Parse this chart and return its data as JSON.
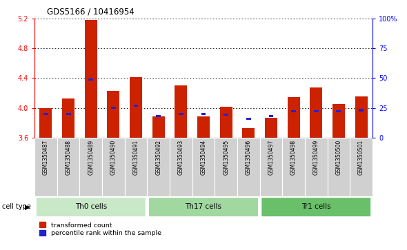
{
  "title": "GDS5166 / 10416954",
  "samples": [
    "GSM1350487",
    "GSM1350488",
    "GSM1350489",
    "GSM1350490",
    "GSM1350491",
    "GSM1350492",
    "GSM1350493",
    "GSM1350494",
    "GSM1350495",
    "GSM1350496",
    "GSM1350497",
    "GSM1350498",
    "GSM1350499",
    "GSM1350500",
    "GSM1350501"
  ],
  "transformed_count": [
    4.0,
    4.13,
    5.18,
    4.23,
    4.41,
    3.88,
    4.3,
    3.88,
    4.01,
    3.73,
    3.87,
    4.14,
    4.27,
    4.05,
    4.15
  ],
  "percentile_rank": [
    20,
    20,
    49,
    25,
    27,
    18,
    20,
    20,
    19,
    16,
    18,
    22,
    22,
    22,
    23
  ],
  "cell_types": [
    {
      "label": "Th0 cells",
      "start": 0,
      "end": 5,
      "color": "#c8e8c8"
    },
    {
      "label": "Th17 cells",
      "start": 5,
      "end": 10,
      "color": "#a0d8a0"
    },
    {
      "label": "Tr1 cells",
      "start": 10,
      "end": 15,
      "color": "#6abf6a"
    }
  ],
  "y_min": 3.6,
  "y_max": 5.2,
  "y_ticks": [
    3.6,
    4.0,
    4.4,
    4.8,
    5.2
  ],
  "right_y_ticks": [
    0,
    25,
    50,
    75,
    100
  ],
  "bar_color": "#cc2200",
  "percentile_color": "#2222cc",
  "sample_bg": "#d0d0d0",
  "plot_bg": "#ffffff",
  "legend_transformed": "transformed count",
  "legend_percentile": "percentile rank within the sample",
  "cell_type_label": "cell type"
}
